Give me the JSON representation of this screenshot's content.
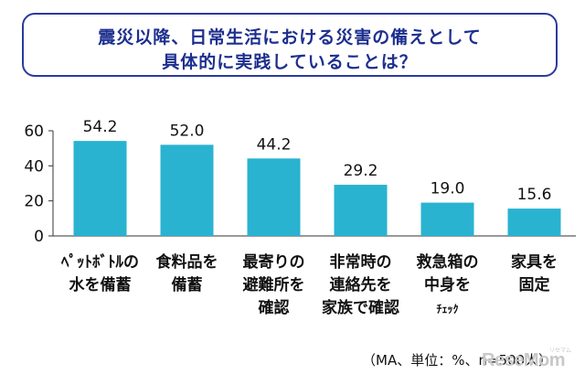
{
  "title": {
    "line1": "震災以降、日常生活における災害の備えとして",
    "line2": "具体的に実践していることは？"
  },
  "chart_data": {
    "type": "bar",
    "categories": [
      [
        "ﾍﾟｯﾄﾎﾞﾄﾙの",
        "水を備蓄"
      ],
      [
        "食料品を",
        "備蓄"
      ],
      [
        "最寄りの",
        "避難所を",
        "確認"
      ],
      [
        "非常時の",
        "連絡先を",
        "家族で確認"
      ],
      [
        "救急箱の",
        "中身を",
        "ﾁｪｯｸ"
      ],
      [
        "家具を",
        "固定"
      ]
    ],
    "values": [
      54.2,
      52.0,
      44.2,
      29.2,
      19.0,
      15.6
    ],
    "value_labels": [
      "54.2",
      "52.0",
      "44.2",
      "29.2",
      "19.0",
      "15.6"
    ],
    "yticks": [
      "0",
      "20",
      "40",
      "60"
    ],
    "ylim": [
      0,
      60
    ],
    "bar_color": "#29b3d1",
    "grid": false,
    "legend": "none"
  },
  "note": "（MA、単位：%、n=500人）",
  "watermark": {
    "text": "ReseMom",
    "small": "リセマム"
  }
}
